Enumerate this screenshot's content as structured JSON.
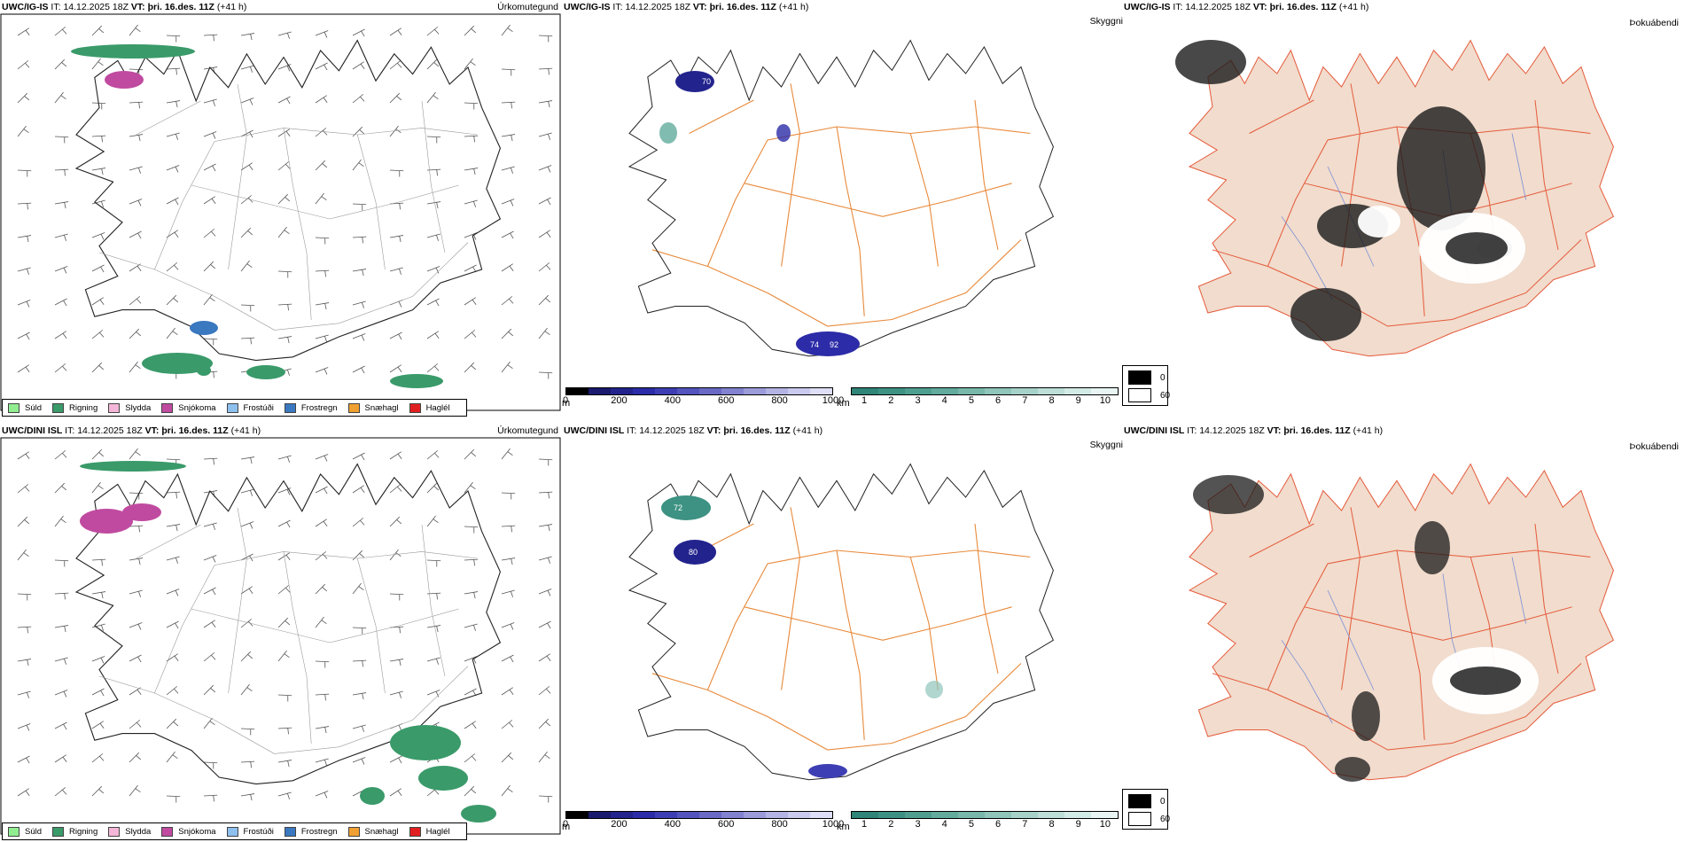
{
  "rows": [
    {
      "model": "UWC/IG-IS",
      "it_label": "IT:",
      "it_value": "14.12.2025 18Z",
      "vt_label": "VT:",
      "vt_value": "þri. 16.des. 11Z",
      "lead": "(+41 h)"
    },
    {
      "model": "UWC/DINI ISL",
      "it_label": "IT:",
      "it_value": "14.12.2025 18Z",
      "vt_label": "VT:",
      "vt_value": "þri. 16.des. 11Z",
      "lead": "(+41 h)"
    }
  ],
  "titles": {
    "precip_type": "Úrkomutegund",
    "visibility": "Skyggni",
    "fog": "Þokuábendi"
  },
  "precip_legend": [
    {
      "label": "Súld",
      "color": "#90ee90"
    },
    {
      "label": "Rigning",
      "color": "#3a9a6a"
    },
    {
      "label": "Slydda",
      "color": "#f4b6d8"
    },
    {
      "label": "Snjókoma",
      "color": "#c04aa0"
    },
    {
      "label": "Frostúði",
      "color": "#8ec0ee"
    },
    {
      "label": "Frostregn",
      "color": "#3a78c0"
    },
    {
      "label": "Snæhagl",
      "color": "#f0a030"
    },
    {
      "label": "Haglél",
      "color": "#e02020"
    }
  ],
  "vis_m_bar": {
    "unit": "m",
    "ticks": [
      "0",
      "200",
      "400",
      "600",
      "800",
      "1000"
    ],
    "colors": [
      "#000000",
      "#1a1a6e",
      "#23238e",
      "#2c2ca8",
      "#3e3eb4",
      "#5454be",
      "#6a6ac6",
      "#8282d0",
      "#9c9cda",
      "#b4b4e4",
      "#cacaee",
      "#dedef6"
    ]
  },
  "vis_km_bar": {
    "unit": "km",
    "ticks": [
      "1",
      "2",
      "3",
      "4",
      "5",
      "6",
      "7",
      "8",
      "9",
      "10"
    ],
    "colors": [
      "#2f8577",
      "#3d9283",
      "#4f9f90",
      "#62ab9d",
      "#78b8ab",
      "#8fc5ba",
      "#a6d2c9",
      "#bddfd8",
      "#d3ebe6",
      "#e8f5f2"
    ]
  },
  "fog_legend": {
    "low": "0",
    "high": "60"
  },
  "map_labels": {
    "row1_west": "70",
    "row1_south_a": "74",
    "row1_south_b": "92",
    "row2_west_a": "72",
    "row2_west_b": "80"
  }
}
